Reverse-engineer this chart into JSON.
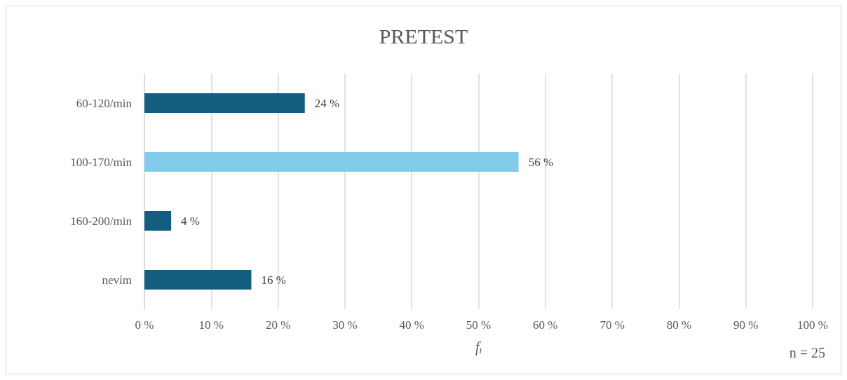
{
  "chart_data": {
    "type": "bar",
    "orientation": "horizontal",
    "title": "PRETEST",
    "categories": [
      "60-120/min",
      "100-170/min",
      "160-200/min",
      "nevím"
    ],
    "values": [
      24,
      56,
      4,
      16
    ],
    "colors": [
      "#135e80",
      "#83cbeb",
      "#135e80",
      "#135e80"
    ],
    "value_labels": [
      "24 %",
      "56 %",
      "4 %",
      "16 %"
    ],
    "xlim": [
      0,
      100
    ],
    "xticks": [
      {
        "value": 0,
        "label": "0 %"
      },
      {
        "value": 10,
        "label": "10 %"
      },
      {
        "value": 20,
        "label": "20 %"
      },
      {
        "value": 30,
        "label": "30 %"
      },
      {
        "value": 40,
        "label": "40 %"
      },
      {
        "value": 50,
        "label": "50 %"
      },
      {
        "value": 60,
        "label": "60 %"
      },
      {
        "value": 70,
        "label": "70 %"
      },
      {
        "value": 80,
        "label": "80 %"
      },
      {
        "value": 90,
        "label": "90 %"
      },
      {
        "value": 100,
        "label": "100 %"
      }
    ],
    "xlabel": "f$_{i}$",
    "annotations": [
      "n = 25"
    ],
    "grid": "x"
  }
}
